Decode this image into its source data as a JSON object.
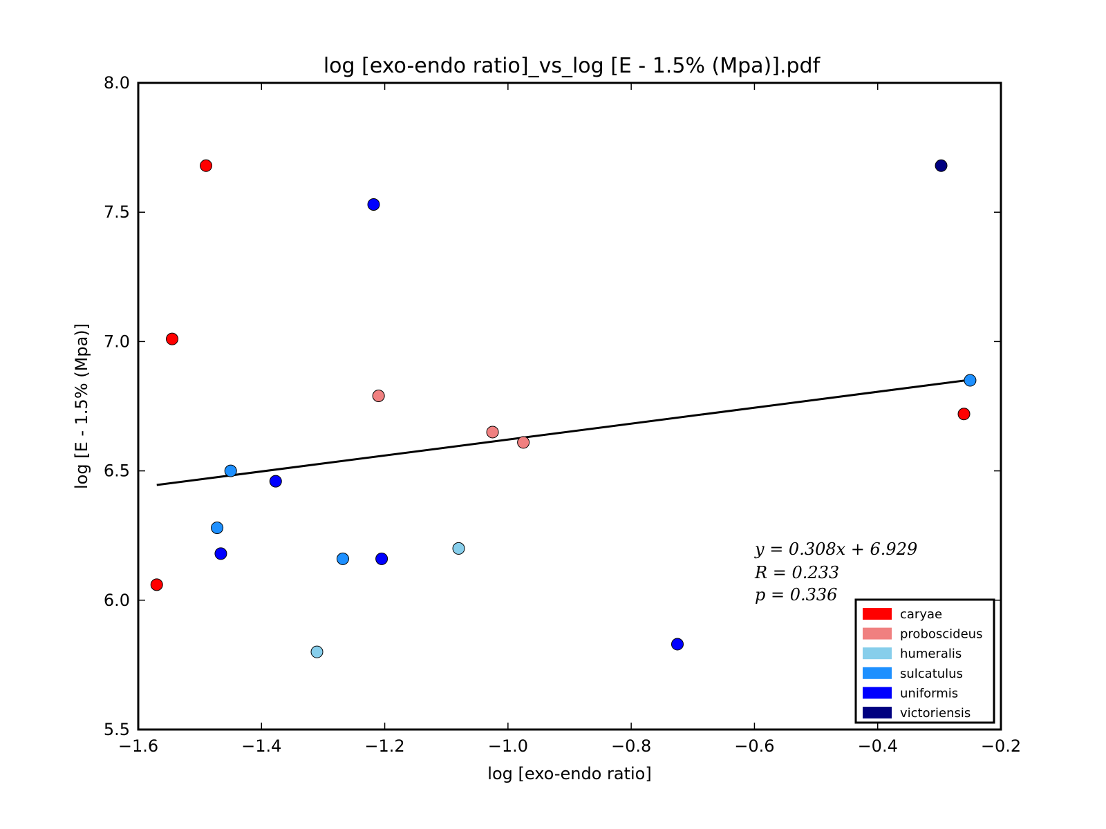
{
  "chart_data": {
    "type": "scatter",
    "title": "log [exo-endo ratio]_vs_log [E - 1.5% (Mpa)].pdf",
    "xlabel": "log [exo-endo ratio]",
    "ylabel": "log [E - 1.5% (Mpa)]",
    "xlim": [
      -1.6,
      -0.2
    ],
    "ylim": [
      5.5,
      8.0
    ],
    "xticks": [
      -1.6,
      -1.4,
      -1.2,
      -1.0,
      -0.8,
      -0.6,
      -0.4,
      -0.2
    ],
    "xtick_labels": [
      "−1.6",
      "−1.4",
      "−1.2",
      "−1.0",
      "−0.8",
      "−0.6",
      "−0.4",
      "−0.2"
    ],
    "yticks": [
      5.5,
      6.0,
      6.5,
      7.0,
      7.5,
      8.0
    ],
    "ytick_labels": [
      "5.5",
      "6.0",
      "6.5",
      "7.0",
      "7.5",
      "8.0"
    ],
    "grid": false,
    "legend_position": "bottom-right",
    "series": [
      {
        "name": "caryae",
        "color": "#ff0000",
        "points": [
          [
            -1.57,
            6.06
          ],
          [
            -1.545,
            7.01
          ],
          [
            -1.49,
            7.68
          ],
          [
            -0.26,
            6.72
          ]
        ]
      },
      {
        "name": "proboscideus",
        "color": "#f08080",
        "points": [
          [
            -1.21,
            6.79
          ],
          [
            -1.025,
            6.65
          ],
          [
            -0.975,
            6.61
          ]
        ]
      },
      {
        "name": "humeralis",
        "color": "#87ceeb",
        "points": [
          [
            -1.31,
            5.8
          ],
          [
            -1.08,
            6.2
          ]
        ]
      },
      {
        "name": "sulcatulus",
        "color": "#1e90ff",
        "points": [
          [
            -1.45,
            6.5
          ],
          [
            -1.472,
            6.28
          ],
          [
            -1.268,
            6.16
          ],
          [
            -0.25,
            6.85
          ]
        ]
      },
      {
        "name": "uniformis",
        "color": "#0000ff",
        "points": [
          [
            -1.218,
            7.53
          ],
          [
            -1.377,
            6.46
          ],
          [
            -1.466,
            6.18
          ],
          [
            -1.205,
            6.16
          ],
          [
            -0.725,
            5.83
          ]
        ]
      },
      {
        "name": "victoriensis",
        "color": "#000080",
        "points": [
          [
            -0.297,
            7.68
          ]
        ]
      }
    ],
    "fit": {
      "slope": 0.308,
      "intercept": 6.929,
      "x_range": [
        -1.57,
        -0.25
      ]
    },
    "annotation": [
      "y = 0.308x + 6.929",
      "R = 0.233",
      "p = 0.336"
    ]
  }
}
